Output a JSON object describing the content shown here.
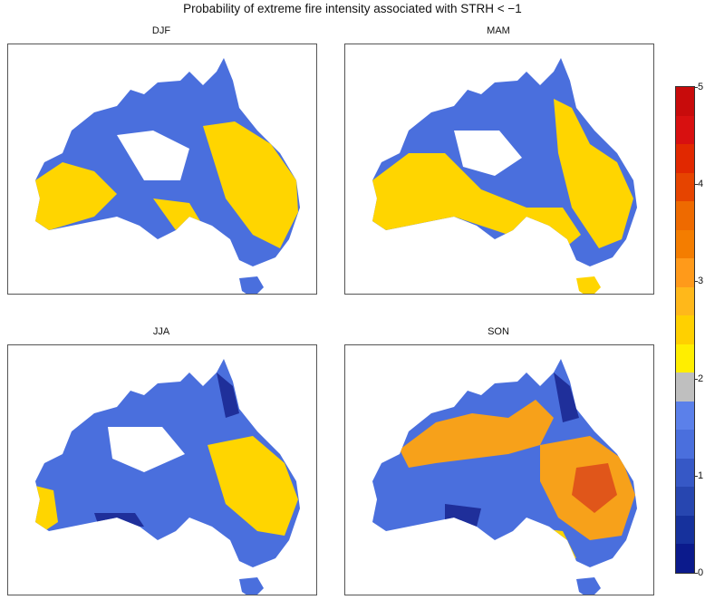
{
  "title": "Probability of extreme fire intensity associated with STRH < −1",
  "panels": [
    {
      "label": "DJF"
    },
    {
      "label": "MAM"
    },
    {
      "label": "JJA"
    },
    {
      "label": "SON"
    }
  ],
  "colorbar": {
    "tick_labels": [
      "0",
      "1",
      "2",
      "3",
      "4",
      "5"
    ],
    "colors": [
      "#0b1a8c",
      "#16319c",
      "#2746b0",
      "#3658c6",
      "#4a6fdd",
      "#5b80ea",
      "#bfbfbf",
      "#ffee00",
      "#ffd000",
      "#ffb81a",
      "#ff9a1a",
      "#f47d00",
      "#ee6a00",
      "#e64400",
      "#e12800",
      "#d81010",
      "#c80b0b"
    ]
  },
  "map_colors": {
    "blue": "#4a6fdd",
    "dark_blue": "#1f2f9a",
    "yellow": "#ffd500",
    "orange": "#f7a11a",
    "dark_orange": "#e0561a",
    "grey": "#bdbdbd"
  }
}
